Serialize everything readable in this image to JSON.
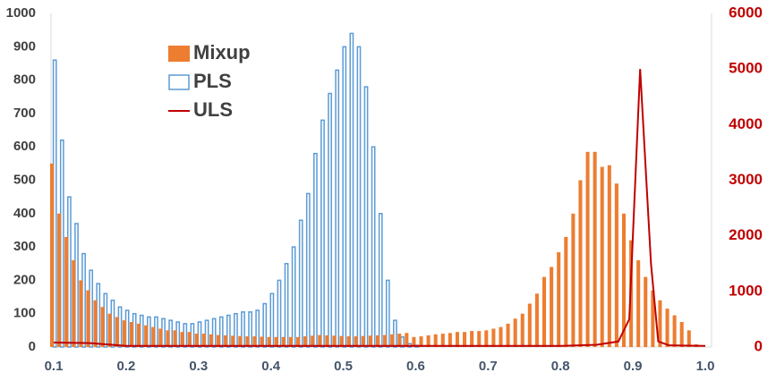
{
  "chart_data": {
    "type": "histogram",
    "bins": [
      0.1,
      0.11,
      0.12,
      0.13,
      0.14,
      0.15,
      0.16,
      0.17,
      0.18,
      0.19,
      0.2,
      0.21,
      0.22,
      0.23,
      0.24,
      0.25,
      0.26,
      0.27,
      0.28,
      0.29,
      0.3,
      0.31,
      0.32,
      0.33,
      0.34,
      0.35,
      0.36,
      0.37,
      0.38,
      0.39,
      0.4,
      0.41,
      0.42,
      0.43,
      0.44,
      0.45,
      0.46,
      0.47,
      0.48,
      0.49,
      0.5,
      0.51,
      0.52,
      0.53,
      0.54,
      0.55,
      0.56,
      0.57,
      0.58,
      0.59,
      0.6,
      0.61,
      0.62,
      0.63,
      0.64,
      0.65,
      0.66,
      0.67,
      0.68,
      0.69,
      0.7,
      0.71,
      0.72,
      0.73,
      0.74,
      0.75,
      0.76,
      0.77,
      0.78,
      0.79,
      0.8,
      0.81,
      0.82,
      0.83,
      0.84,
      0.85,
      0.86,
      0.87,
      0.88,
      0.89,
      0.9,
      0.91,
      0.92,
      0.93,
      0.94,
      0.95,
      0.96,
      0.97,
      0.98,
      0.99,
      1.0
    ],
    "series": [
      {
        "name": "Mixup",
        "color": "#ed7d31",
        "fill": true,
        "values": [
          550,
          400,
          330,
          260,
          200,
          170,
          140,
          120,
          100,
          90,
          80,
          75,
          70,
          65,
          60,
          55,
          50,
          50,
          45,
          45,
          40,
          40,
          38,
          36,
          35,
          34,
          33,
          32,
          32,
          31,
          30,
          30,
          30,
          30,
          30,
          32,
          34,
          36,
          35,
          34,
          33,
          32,
          32,
          33,
          34,
          35,
          36,
          38,
          40,
          42,
          30,
          32,
          35,
          38,
          40,
          42,
          45,
          45,
          48,
          48,
          50,
          55,
          60,
          70,
          85,
          100,
          130,
          160,
          210,
          240,
          284,
          330,
          400,
          500,
          585,
          585,
          540,
          545,
          490,
          400,
          320,
          260,
          210,
          170,
          140,
          115,
          95,
          75,
          50,
          8
        ]
      },
      {
        "name": "PLS",
        "color": "#5b9bd5",
        "fill": false,
        "values": [
          860,
          620,
          450,
          370,
          280,
          230,
          190,
          160,
          140,
          120,
          110,
          100,
          95,
          90,
          90,
          85,
          80,
          75,
          70,
          70,
          75,
          80,
          85,
          90,
          95,
          100,
          105,
          105,
          110,
          130,
          160,
          200,
          250,
          300,
          380,
          460,
          580,
          680,
          760,
          830,
          900,
          940,
          900,
          780,
          600,
          400,
          200,
          80,
          30,
          10,
          5,
          0,
          0,
          0,
          0,
          0,
          0,
          0,
          0,
          0,
          0,
          0,
          0,
          0,
          0,
          0,
          0,
          0,
          0,
          0,
          0,
          0,
          0,
          0,
          0,
          0,
          0,
          0,
          0,
          0,
          0,
          0,
          0,
          0,
          0,
          0,
          0,
          0,
          0,
          0
        ]
      },
      {
        "name": "ULS",
        "color": "#c00000",
        "type": "line",
        "axis": "y2",
        "x": [
          0.1,
          0.15,
          0.2,
          0.3,
          0.4,
          0.5,
          0.6,
          0.7,
          0.8,
          0.85,
          0.88,
          0.895,
          0.91,
          0.925,
          0.935,
          0.95,
          1.0
        ],
        "values": [
          80,
          70,
          20,
          20,
          20,
          20,
          20,
          20,
          20,
          40,
          100,
          500,
          5000,
          1500,
          100,
          30,
          20
        ]
      }
    ],
    "xlim": [
      0.1,
      1.0
    ],
    "xticks": [
      0.1,
      0.2,
      0.3,
      0.4,
      0.5,
      0.6,
      0.7,
      0.8,
      0.9,
      {
        "value": 1,
        "label": "1.0"
      }
    ],
    "ylim": [
      0,
      1000
    ],
    "yticks": [
      0,
      100,
      200,
      300,
      400,
      500,
      600,
      700,
      800,
      900,
      1000
    ],
    "y2lim": [
      0,
      6000
    ],
    "y2ticks": [
      0,
      1000,
      2000,
      3000,
      4000,
      5000,
      6000
    ],
    "legend": "upper left"
  }
}
